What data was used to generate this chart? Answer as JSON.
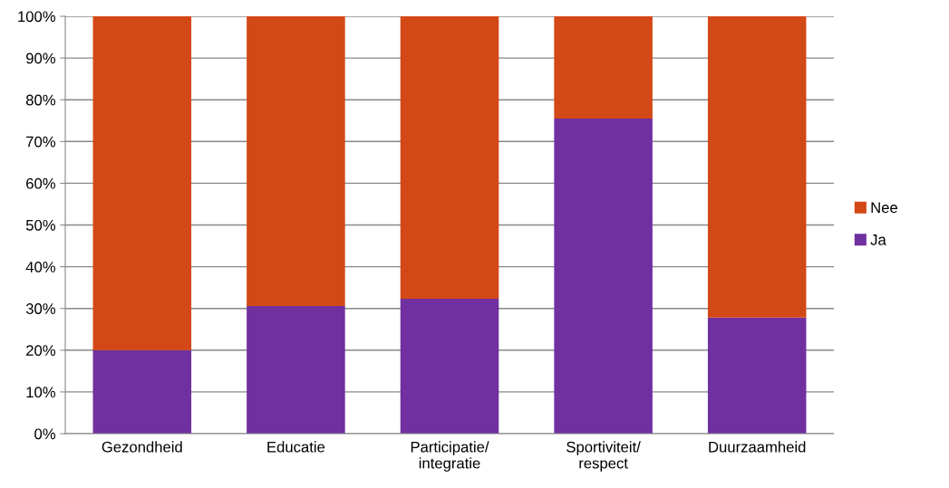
{
  "chart_data": {
    "type": "bar",
    "stacked": true,
    "categories": [
      "Gezondheid",
      "Educatie",
      "Participatie/\nintegratie",
      "Sportiviteit/\nrespect",
      "Duurzaamheid"
    ],
    "series": [
      {
        "name": "Ja",
        "color": "#7030a0",
        "values": [
          20,
          30.6,
          32.3,
          75.5,
          27.8
        ]
      },
      {
        "name": "Nee",
        "color": "#d34817",
        "values": [
          80,
          69.4,
          67.7,
          24.5,
          72.2
        ]
      }
    ],
    "ylim": [
      0,
      100
    ],
    "yticks": [
      {
        "value": 0,
        "label": "0%"
      },
      {
        "value": 10,
        "label": "10%"
      },
      {
        "value": 20,
        "label": "20%"
      },
      {
        "value": 30,
        "label": "30%"
      },
      {
        "value": 40,
        "label": "40%"
      },
      {
        "value": 50,
        "label": "50%"
      },
      {
        "value": 60,
        "label": "60%"
      },
      {
        "value": 70,
        "label": "70%"
      },
      {
        "value": 80,
        "label": "80%"
      },
      {
        "value": 90,
        "label": "90%"
      },
      {
        "value": 100,
        "label": "100%"
      }
    ],
    "grid": "y",
    "legend": "right"
  }
}
